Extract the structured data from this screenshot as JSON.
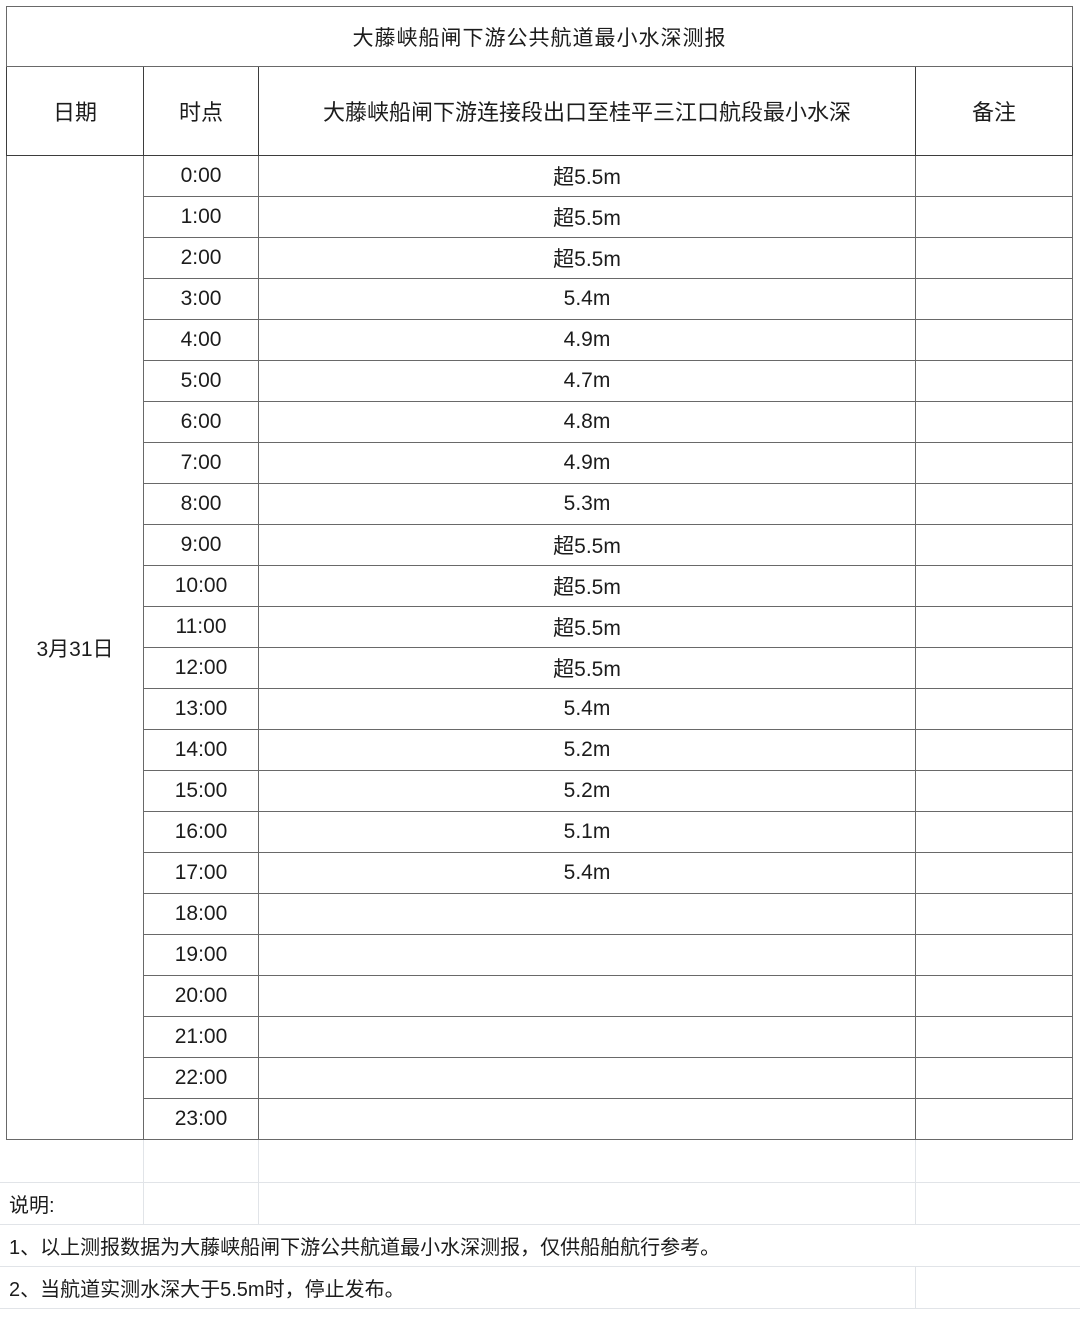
{
  "report": {
    "title": "大藤峡船闸下游公共航道最小水深测报",
    "columns": {
      "date": "日期",
      "time": "时点",
      "depth": "大藤峡船闸下游连接段出口至桂平三江口航段最小水深",
      "remark": "备注"
    },
    "date": "3月31日",
    "rows": [
      {
        "time": "0:00",
        "depth": "超5.5m"
      },
      {
        "time": "1:00",
        "depth": "超5.5m"
      },
      {
        "time": "2:00",
        "depth": "超5.5m"
      },
      {
        "time": "3:00",
        "depth": "5.4m"
      },
      {
        "time": "4:00",
        "depth": "4.9m"
      },
      {
        "time": "5:00",
        "depth": "4.7m"
      },
      {
        "time": "6:00",
        "depth": "4.8m"
      },
      {
        "time": "7:00",
        "depth": "4.9m"
      },
      {
        "time": "8:00",
        "depth": "5.3m"
      },
      {
        "time": "9:00",
        "depth": "超5.5m"
      },
      {
        "time": "10:00",
        "depth": "超5.5m"
      },
      {
        "time": "11:00",
        "depth": "超5.5m"
      },
      {
        "time": "12:00",
        "depth": "超5.5m"
      },
      {
        "time": "13:00",
        "depth": "5.4m"
      },
      {
        "time": "14:00",
        "depth": "5.2m"
      },
      {
        "time": "15:00",
        "depth": "5.2m"
      },
      {
        "time": "16:00",
        "depth": "5.1m"
      },
      {
        "time": "17:00",
        "depth": "5.4m"
      },
      {
        "time": "18:00",
        "depth": ""
      },
      {
        "time": "19:00",
        "depth": ""
      },
      {
        "time": "20:00",
        "depth": ""
      },
      {
        "time": "21:00",
        "depth": ""
      },
      {
        "time": "22:00",
        "depth": ""
      },
      {
        "time": "23:00",
        "depth": ""
      }
    ],
    "notes": {
      "label": "说明:",
      "items": [
        "1、以上测报数据为大藤峡船闸下游公共航道最小水深测报，仅供船舶航行参考。",
        "2、当航道实测水深大于5.5m时，停止发布。"
      ]
    }
  },
  "chart_data": {
    "type": "table",
    "title": "大藤峡船闸下游公共航道最小水深测报",
    "categories": [
      "0:00",
      "1:00",
      "2:00",
      "3:00",
      "4:00",
      "5:00",
      "6:00",
      "7:00",
      "8:00",
      "9:00",
      "10:00",
      "11:00",
      "12:00",
      "13:00",
      "14:00",
      "15:00",
      "16:00",
      "17:00",
      "18:00",
      "19:00",
      "20:00",
      "21:00",
      "22:00",
      "23:00"
    ],
    "series": [
      {
        "name": "大藤峡船闸下游连接段出口至桂平三江口航段最小水深",
        "values": [
          "超5.5m",
          "超5.5m",
          "超5.5m",
          "5.4m",
          "4.9m",
          "4.7m",
          "4.8m",
          "4.9m",
          "5.3m",
          "超5.5m",
          "超5.5m",
          "超5.5m",
          "超5.5m",
          "5.4m",
          "5.2m",
          "5.2m",
          "5.1m",
          "5.4m",
          "",
          "",
          "",
          "",
          "",
          ""
        ]
      }
    ]
  }
}
